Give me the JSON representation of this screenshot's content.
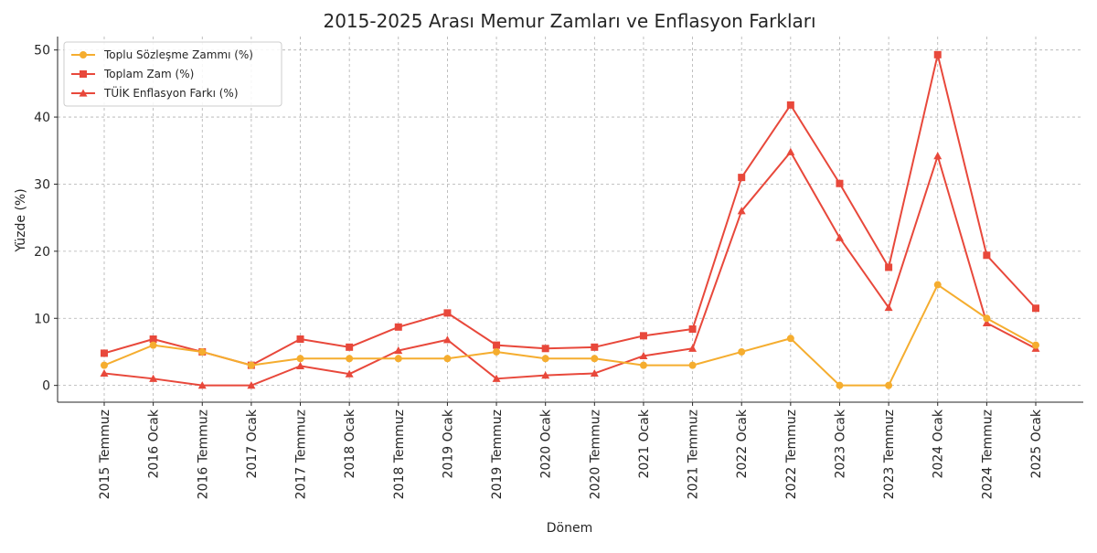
{
  "chart_data": {
    "type": "line",
    "title": "2015-2025 Arası Memur Zamları ve Enflasyon Farkları",
    "xlabel": "Dönem",
    "ylabel": "Yüzde (%)",
    "ylim": [
      -2.5,
      52
    ],
    "yticks": [
      0,
      10,
      20,
      30,
      40,
      50
    ],
    "grid": true,
    "legend_position": "top-left",
    "categories": [
      "2015 Temmuz",
      "2016 Ocak",
      "2016 Temmuz",
      "2017 Ocak",
      "2017 Temmuz",
      "2018 Ocak",
      "2018 Temmuz",
      "2019 Ocak",
      "2019 Temmuz",
      "2020 Ocak",
      "2020 Temmuz",
      "2021 Ocak",
      "2021 Temmuz",
      "2022 Ocak",
      "2022 Temmuz",
      "2023 Ocak",
      "2023 Temmuz",
      "2024 Ocak",
      "2024 Temmuz",
      "2025 Ocak"
    ],
    "series": [
      {
        "name": "Toplu Sözleşme Zammı (%)",
        "color": "#f5ad2f",
        "marker": "circle",
        "values": [
          3,
          6,
          5,
          3,
          4,
          4,
          4,
          4,
          5,
          4,
          4,
          3,
          3,
          5,
          7,
          0,
          0,
          15,
          10,
          6
        ]
      },
      {
        "name": "Toplam Zam (%)",
        "color": "#e8483b",
        "marker": "square",
        "values": [
          4.8,
          6.9,
          5,
          3,
          6.9,
          5.7,
          8.7,
          10.8,
          6,
          5.5,
          5.7,
          7.4,
          8.4,
          31,
          41.8,
          30.1,
          17.6,
          49.3,
          19.4,
          11.5
        ]
      },
      {
        "name": "TÜİK Enflasyon Farkı (%)",
        "color": "#e8483b",
        "marker": "triangle",
        "values": [
          1.8,
          1,
          0,
          0,
          2.9,
          1.7,
          5.2,
          6.8,
          1,
          1.5,
          1.8,
          4.4,
          5.5,
          26,
          34.8,
          22,
          11.6,
          34.2,
          9.3,
          5.5
        ]
      }
    ]
  }
}
